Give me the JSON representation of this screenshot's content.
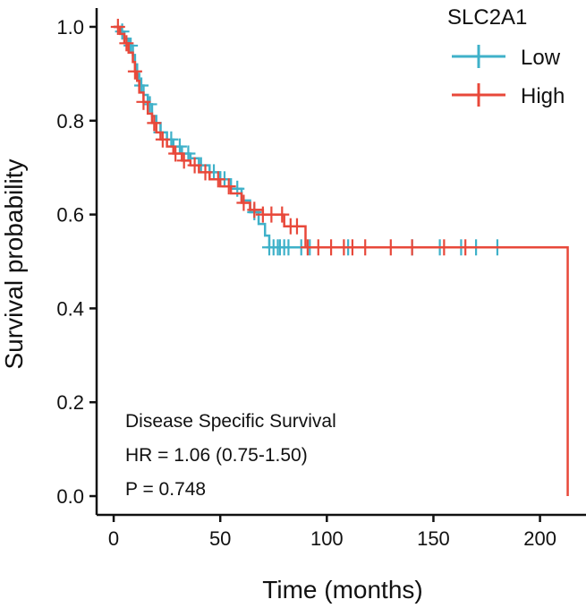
{
  "chart_data": {
    "type": "line",
    "xlabel": "Time (months)",
    "ylabel": "Survival probability",
    "xlim": [
      -8,
      222
    ],
    "ylim": [
      -0.04,
      1.04
    ],
    "x_ticks": [
      0,
      50,
      100,
      150,
      200
    ],
    "y_ticks": [
      0.0,
      0.2,
      0.4,
      0.6,
      0.8,
      1.0
    ],
    "y_tick_labels": [
      "0.0",
      "0.2",
      "0.4",
      "0.6",
      "0.8",
      "1.0"
    ],
    "grid": false,
    "legend": {
      "title": "SLC2A1",
      "placement": "top-right"
    },
    "annotations": [
      "Disease Specific Survival",
      "HR = 1.06 (0.75-1.50)",
      "P = 0.748"
    ],
    "series": [
      {
        "name": "Low",
        "color": "#3fb1c9",
        "steps": [
          [
            0,
            1.0
          ],
          [
            3,
            0.99
          ],
          [
            5,
            0.975
          ],
          [
            7,
            0.96
          ],
          [
            9,
            0.94
          ],
          [
            10,
            0.92
          ],
          [
            11,
            0.9
          ],
          [
            12,
            0.875
          ],
          [
            14,
            0.855
          ],
          [
            16,
            0.835
          ],
          [
            18,
            0.81
          ],
          [
            20,
            0.795
          ],
          [
            22,
            0.775
          ],
          [
            25,
            0.76
          ],
          [
            28,
            0.745
          ],
          [
            32,
            0.73
          ],
          [
            36,
            0.72
          ],
          [
            40,
            0.705
          ],
          [
            45,
            0.69
          ],
          [
            50,
            0.675
          ],
          [
            55,
            0.655
          ],
          [
            60,
            0.63
          ],
          [
            64,
            0.605
          ],
          [
            68,
            0.58
          ],
          [
            71,
            0.555
          ],
          [
            73,
            0.53
          ],
          [
            186,
            0.53
          ]
        ],
        "censor_x": [
          4,
          8,
          13,
          17,
          22,
          27,
          31,
          35,
          41,
          47,
          52,
          58,
          66,
          73,
          75,
          77,
          78,
          80,
          82,
          88,
          92,
          110,
          140,
          153,
          163,
          170,
          180
        ]
      },
      {
        "name": "High",
        "color": "#e8483a",
        "steps": [
          [
            0,
            1.0
          ],
          [
            3,
            0.985
          ],
          [
            5,
            0.965
          ],
          [
            7,
            0.945
          ],
          [
            9,
            0.925
          ],
          [
            10,
            0.905
          ],
          [
            11,
            0.885
          ],
          [
            12,
            0.86
          ],
          [
            14,
            0.84
          ],
          [
            16,
            0.815
          ],
          [
            18,
            0.795
          ],
          [
            20,
            0.775
          ],
          [
            22,
            0.76
          ],
          [
            25,
            0.745
          ],
          [
            28,
            0.73
          ],
          [
            32,
            0.715
          ],
          [
            36,
            0.705
          ],
          [
            40,
            0.69
          ],
          [
            45,
            0.675
          ],
          [
            50,
            0.66
          ],
          [
            55,
            0.645
          ],
          [
            60,
            0.625
          ],
          [
            64,
            0.61
          ],
          [
            70,
            0.6
          ],
          [
            80,
            0.575
          ],
          [
            90,
            0.53
          ],
          [
            213,
            0.53
          ],
          [
            213,
            0.0
          ]
        ],
        "censor_x": [
          2,
          6,
          10,
          14,
          19,
          23,
          29,
          33,
          38,
          43,
          49,
          54,
          61,
          66,
          70,
          74,
          79,
          83,
          86,
          91,
          96,
          102,
          108,
          112,
          118,
          130,
          140,
          155,
          165
        ]
      }
    ]
  }
}
